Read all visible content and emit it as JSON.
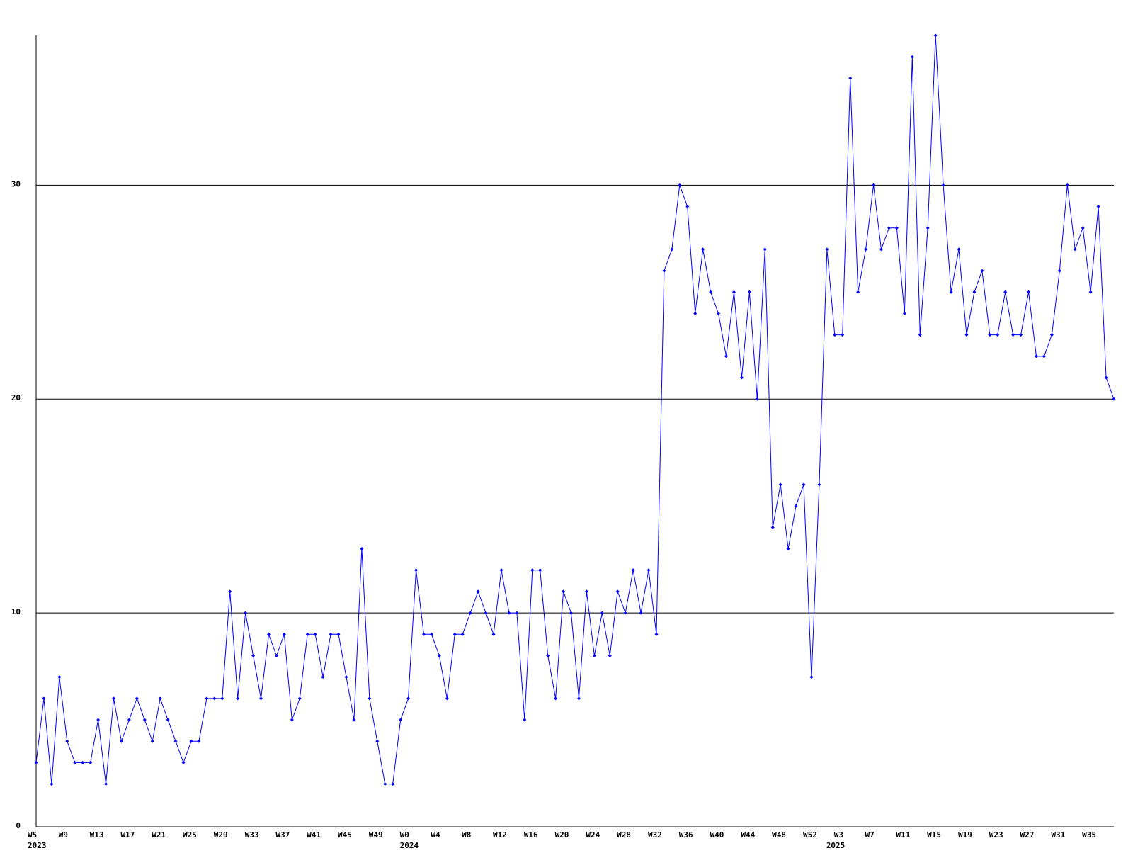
{
  "chart_data": {
    "type": "line",
    "categories": [
      "W5",
      null,
      null,
      null,
      "W9",
      null,
      null,
      null,
      "W13",
      null,
      null,
      null,
      "W17",
      null,
      null,
      null,
      "W21",
      null,
      null,
      null,
      "W25",
      null,
      null,
      null,
      "W29",
      null,
      null,
      null,
      "W33",
      null,
      null,
      null,
      "W37",
      null,
      null,
      null,
      "W41",
      null,
      null,
      null,
      "W45",
      null,
      null,
      null,
      "W49",
      null,
      null,
      null,
      "W0",
      null,
      null,
      null,
      "W4",
      null,
      null,
      null,
      "W8",
      null,
      null,
      null,
      "W12",
      null,
      null,
      null,
      "W16",
      null,
      null,
      null,
      "W20",
      null,
      null,
      null,
      "W24",
      null,
      null,
      null,
      "W28",
      null,
      null,
      null,
      "W32",
      null,
      null,
      null,
      "W36",
      null,
      null,
      null,
      "W40",
      null,
      null,
      null,
      "W44",
      null,
      null,
      null,
      "W48",
      null,
      null,
      null,
      "W52",
      null,
      null,
      null,
      "W3",
      null,
      null,
      null,
      "W7",
      null,
      null,
      null,
      "W11",
      null,
      null,
      null,
      "W15",
      null,
      null,
      null,
      "W19",
      null,
      null,
      null,
      "W23",
      null,
      null,
      null,
      "W27",
      null,
      null,
      null,
      "W31",
      null,
      null,
      null,
      "W35",
      null,
      null,
      null
    ],
    "category_years": [
      "2023",
      null,
      null,
      null,
      null,
      null,
      null,
      null,
      null,
      null,
      null,
      null,
      null,
      null,
      null,
      null,
      null,
      null,
      null,
      null,
      null,
      null,
      null,
      null,
      null,
      null,
      null,
      null,
      null,
      null,
      null,
      null,
      null,
      null,
      null,
      null,
      null,
      null,
      null,
      null,
      null,
      null,
      null,
      null,
      null,
      null,
      null,
      null,
      "2024",
      null,
      null,
      null,
      null,
      null,
      null,
      null,
      null,
      null,
      null,
      null,
      null,
      null,
      null,
      null,
      null,
      null,
      null,
      null,
      null,
      null,
      null,
      null,
      null,
      null,
      null,
      null,
      null,
      null,
      null,
      null,
      null,
      null,
      null,
      null,
      null,
      null,
      null,
      null,
      null,
      null,
      null,
      null,
      null,
      null,
      null,
      null,
      null,
      null,
      null,
      null,
      null,
      null,
      null,
      "2025",
      null,
      null,
      null,
      null,
      null,
      null,
      null,
      null,
      null,
      null,
      null,
      null,
      null,
      null,
      null,
      null,
      null,
      null,
      null,
      null,
      null,
      null,
      null,
      null,
      null,
      null,
      null,
      null,
      null,
      null,
      null,
      null,
      null,
      null,
      null,
      null,
      null,
      null
    ],
    "series": [
      {
        "color": "#0000ff",
        "values": [
          3,
          6,
          2,
          7,
          4,
          3,
          3,
          3,
          5,
          2,
          6,
          4,
          5,
          6,
          5,
          4,
          6,
          5,
          4,
          3,
          4,
          4,
          6,
          6,
          6,
          11,
          6,
          10,
          8,
          6,
          9,
          8,
          9,
          5,
          6,
          9,
          9,
          7,
          9,
          9,
          7,
          5,
          13,
          6,
          4,
          2,
          2,
          5,
          6,
          12,
          9,
          9,
          8,
          6,
          9,
          9,
          10,
          11,
          10,
          9,
          12,
          10,
          10,
          5,
          12,
          12,
          8,
          6,
          11,
          10,
          6,
          11,
          8,
          10,
          8,
          11,
          10,
          12,
          10,
          12,
          9,
          26,
          27,
          30,
          29,
          24,
          27,
          25,
          24,
          22,
          25,
          21,
          25,
          20,
          27,
          14,
          16,
          13,
          15,
          16,
          7,
          16,
          27,
          23,
          23,
          35,
          25,
          27,
          30,
          27,
          28,
          28,
          24,
          36,
          23,
          28,
          37,
          30,
          25,
          27,
          23,
          25,
          26,
          23,
          23,
          25,
          23,
          23,
          25,
          22,
          22,
          23,
          26,
          30,
          27,
          28,
          25,
          29,
          21,
          20
        ]
      }
    ],
    "ylim": [
      0,
      37
    ],
    "yticks": [
      0,
      10,
      20,
      30
    ],
    "grid": true
  }
}
